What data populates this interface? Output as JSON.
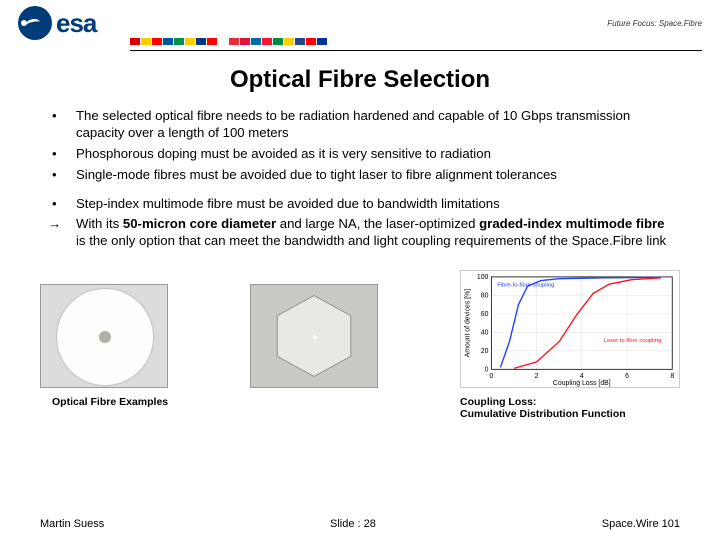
{
  "header": {
    "logo_text": "esa",
    "tagline": "Future Focus: Space.Fibre",
    "flag_colors": [
      "#d00",
      "#ffcc00",
      "#ff0000",
      "#0055a4",
      "#009246",
      "#ffce00",
      "#003580",
      "#ff0000",
      "#ffffff",
      "#ed2939",
      "#dc143c",
      "#006aa7",
      "#f31830",
      "#008c45",
      "#ffcd00",
      "#21468b",
      "#ff0000",
      "#003399"
    ]
  },
  "title": "Optical Fibre Selection",
  "bullets_a": [
    "The selected optical fibre needs to be radiation hardened and capable of 10 Gbps transmission capacity over a length of 100 meters",
    "Phosphorous doping must be avoided as it is very sensitive to radiation",
    "Single-mode fibres must be avoided due to tight laser to fibre alignment tolerances"
  ],
  "bullet_b": "Step-index multimode fibre must be avoided due to bandwidth limitations",
  "arrow": {
    "prefix": "→",
    "pre_text": "With its ",
    "bold1": "50-micron core diameter",
    "mid1": " and large NA, the laser-optimized ",
    "bold2": "graded-index multimode fibre",
    "post": " is the only option that can meet the bandwidth and light coupling requirements of the Space.Fibre link"
  },
  "captions": {
    "left": "Optical Fibre Examples",
    "right_line1": "Coupling Loss:",
    "right_line2": "Cumulative Distribution Function"
  },
  "footer": {
    "author": "Martin Suess",
    "slide": "Slide : 28",
    "course": "Space.Wire 101"
  },
  "chart": {
    "xlabel": "Coupling Loss [dB]",
    "ylabel": "Amount of devices [%]",
    "xlim": [
      0,
      8
    ],
    "ylim": [
      0,
      100
    ],
    "grid_color": "#e0e0e0",
    "axis_color": "#000000",
    "series": [
      {
        "label": "Fibre-to-fibre coupling",
        "color": "#2040ff",
        "points": [
          [
            0.4,
            2
          ],
          [
            0.8,
            30
          ],
          [
            1.2,
            70
          ],
          [
            1.6,
            90
          ],
          [
            2.2,
            96
          ],
          [
            3.0,
            98
          ],
          [
            5.0,
            99
          ],
          [
            7.5,
            99.5
          ]
        ]
      },
      {
        "label": "Laser to fibre coupling",
        "color": "#ff1020",
        "points": [
          [
            1.0,
            1
          ],
          [
            2.0,
            8
          ],
          [
            3.0,
            30
          ],
          [
            3.8,
            60
          ],
          [
            4.5,
            82
          ],
          [
            5.2,
            92
          ],
          [
            6.2,
            97
          ],
          [
            7.5,
            99
          ]
        ]
      }
    ],
    "label_font_size": 7,
    "legend_font_size": 6
  },
  "hex": {
    "fill": "#e8e8e4",
    "stroke": "#888"
  }
}
